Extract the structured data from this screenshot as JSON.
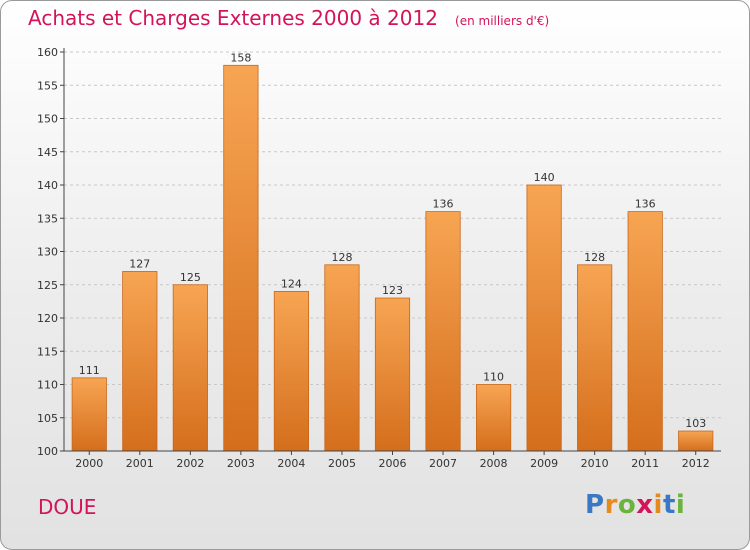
{
  "page": {
    "commune": "DOUE",
    "logo": {
      "letters": [
        "P",
        "r",
        "o",
        "x",
        "i",
        "t",
        "i"
      ],
      "colors": [
        "#3a78c3",
        "#e68a1e",
        "#6ab43e",
        "#d4145a",
        "#e68a1e",
        "#3a78c3",
        "#6ab43e"
      ]
    }
  },
  "chart_data": {
    "type": "bar",
    "title": "Achats et Charges Externes 2000 à 2012",
    "subtitle": "(en milliers d'€)",
    "categories": [
      "2000",
      "2001",
      "2002",
      "2003",
      "2004",
      "2005",
      "2006",
      "2007",
      "2008",
      "2009",
      "2010",
      "2011",
      "2012"
    ],
    "values": [
      111,
      127,
      125,
      158,
      124,
      128,
      123,
      136,
      110,
      140,
      128,
      136,
      103
    ],
    "ylim": [
      100,
      160
    ],
    "yticks": [
      100,
      105,
      110,
      115,
      120,
      125,
      130,
      135,
      140,
      145,
      150,
      155,
      160
    ],
    "grid": true,
    "legend": "none",
    "colors": {
      "bar_top": "#f7a553",
      "bar_bottom": "#d46e1c",
      "bar_edge": "#c9661a",
      "title": "#d4145a",
      "grid": "#c8c8c8",
      "axis": "#444444"
    }
  }
}
